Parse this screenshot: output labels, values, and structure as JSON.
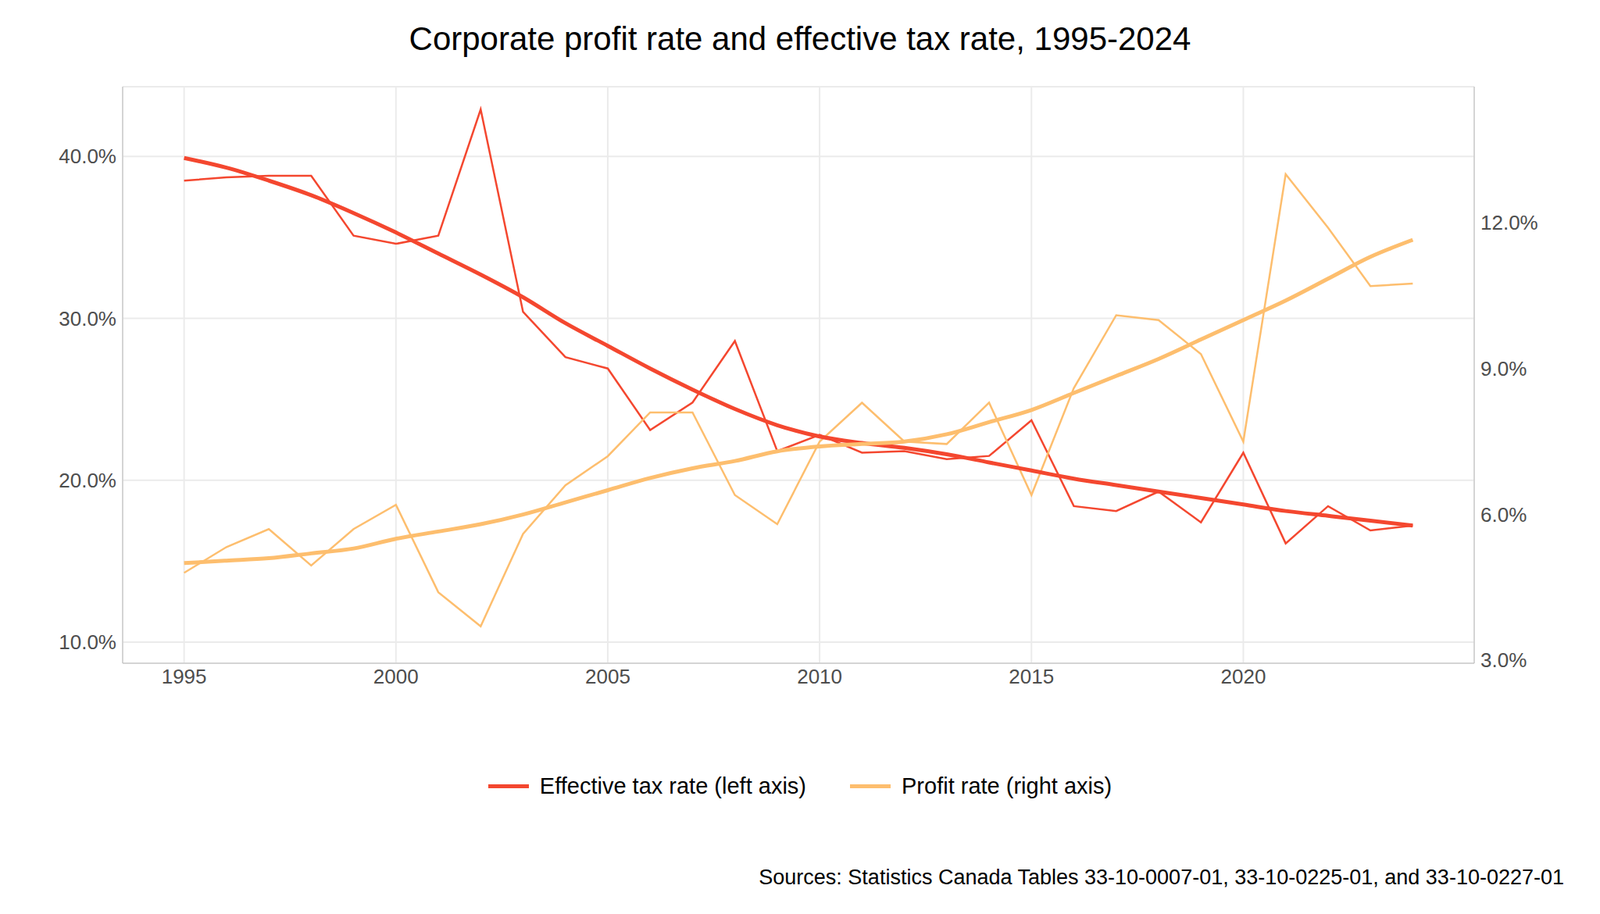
{
  "chart_data": {
    "type": "line",
    "title": "Corporate profit rate and effective tax rate, 1995-2024",
    "caption": "Sources: Statistics Canada Tables 33-10-0007-01, 33-10-0225-01, and 33-10-0227-01",
    "x": [
      1995,
      1996,
      1997,
      1998,
      1999,
      2000,
      2001,
      2002,
      2003,
      2004,
      2005,
      2006,
      2007,
      2008,
      2009,
      2010,
      2011,
      2012,
      2013,
      2014,
      2015,
      2016,
      2017,
      2018,
      2019,
      2020,
      2021,
      2022,
      2023,
      2024
    ],
    "xlim": [
      1993.55,
      2025.45
    ],
    "xticks": [
      1995,
      2000,
      2005,
      2010,
      2015,
      2020
    ],
    "ylim": [
      8.7,
      44.3
    ],
    "yticks": [
      {
        "value": 10,
        "label": "10.0%"
      },
      {
        "value": 20,
        "label": "20.0%"
      },
      {
        "value": 30,
        "label": "30.0%"
      },
      {
        "value": 40,
        "label": "40.0%"
      }
    ],
    "y2lim": [
      2.94,
      14.8
    ],
    "y2ticks": [
      {
        "value": 3,
        "label": "3.0%"
      },
      {
        "value": 6,
        "label": "6.0%"
      },
      {
        "value": 9,
        "label": "9.0%"
      },
      {
        "value": 12,
        "label": "12.0%"
      }
    ],
    "grid": true,
    "legend": "bottom",
    "series": [
      {
        "name": "Effective tax rate (left axis)",
        "color": "#F4472F",
        "axis": "y",
        "values": [
          38.5,
          38.7,
          38.8,
          38.8,
          35.1,
          34.6,
          35.1,
          42.9,
          30.4,
          27.6,
          26.9,
          23.1,
          24.8,
          28.6,
          21.8,
          22.8,
          21.7,
          21.8,
          21.3,
          21.5,
          23.7,
          18.4,
          18.1,
          19.3,
          17.4,
          21.7,
          16.1,
          18.4,
          16.9,
          17.2
        ],
        "trend": [
          39.9,
          39.3,
          38.5,
          37.6,
          36.5,
          35.3,
          34.0,
          32.7,
          31.3,
          29.7,
          28.3,
          26.9,
          25.6,
          24.4,
          23.4,
          22.7,
          22.3,
          22.0,
          21.6,
          21.1,
          20.6,
          20.1,
          19.7,
          19.3,
          18.9,
          18.5,
          18.1,
          17.8,
          17.5,
          17.2
        ]
      },
      {
        "name": "Profit rate (right axis)",
        "color": "#FDBE6E",
        "axis": "y2",
        "values": [
          4.8,
          5.33,
          5.7,
          4.95,
          5.7,
          6.2,
          4.4,
          3.7,
          5.6,
          6.6,
          7.2,
          8.1,
          8.1,
          6.4,
          5.8,
          7.5,
          8.3,
          7.5,
          7.45,
          8.3,
          6.4,
          8.6,
          10.1,
          10.0,
          9.3,
          7.5,
          13.0,
          11.9,
          10.7,
          10.75
        ],
        "trend": [
          5.0,
          5.05,
          5.1,
          5.2,
          5.3,
          5.5,
          5.65,
          5.8,
          6.0,
          6.25,
          6.5,
          6.75,
          6.95,
          7.1,
          7.3,
          7.4,
          7.45,
          7.5,
          7.65,
          7.9,
          8.15,
          8.5,
          8.85,
          9.2,
          9.6,
          10.0,
          10.4,
          10.85,
          11.3,
          11.65
        ]
      }
    ]
  }
}
